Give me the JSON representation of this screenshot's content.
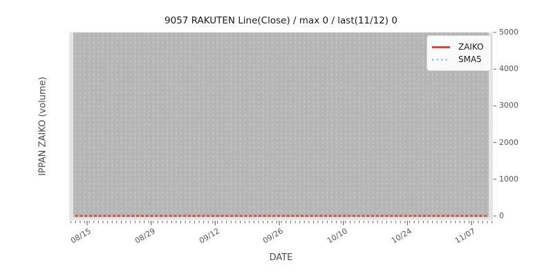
{
  "figure": {
    "title": "9057 RAKUTEN Line(Close) / max 0 / last(11/12) 0",
    "xlabel": "DATE",
    "ylabel": "IPPAN ZAIKO (volume)"
  },
  "legend": {
    "position": "upper right",
    "items": [
      {
        "label": "ZAIKO",
        "color": "#d5492f",
        "line_style": "solid"
      },
      {
        "label": "SMA5",
        "color": "#a8cbe0",
        "line_style": "dotted"
      }
    ]
  },
  "chart_data": {
    "type": "line",
    "title": "9057 RAKUTEN Line(Close) / max 0 / last(11/12) 0",
    "xlabel": "DATE",
    "ylabel": "IPPAN ZAIKO (volume)",
    "x_tick_labels": [
      "08/15",
      "08/29",
      "09/12",
      "09/26",
      "10/10",
      "10/24",
      "11/07"
    ],
    "x_major_tick_interval_days": 14,
    "x_minor_tick_interval_days": 1,
    "y_ticks": [
      0,
      1000,
      2000,
      3000,
      4000,
      5000
    ],
    "ylim": [
      0,
      5000
    ],
    "series": [
      {
        "name": "ZAIKO",
        "color": "#d5492f",
        "style": "solid",
        "constant_value": 0
      },
      {
        "name": "SMA5",
        "color": "#a8cbe0",
        "style": "dotted",
        "constant_value": 0
      }
    ],
    "stats": {
      "max": 0,
      "last_date": "11/12",
      "last_value": 0
    },
    "grid": {
      "vertical_daily_dashed": true,
      "color": "#cbcbcb"
    },
    "colors": {
      "plot_fill": "#b6b6b6",
      "axes_margin": "#e5e5e5",
      "tick": "#666666",
      "tick_label": "#555555",
      "title": "#1a1a1a",
      "axis_label": "#4a4a4a"
    },
    "legend_position": "upper right"
  }
}
